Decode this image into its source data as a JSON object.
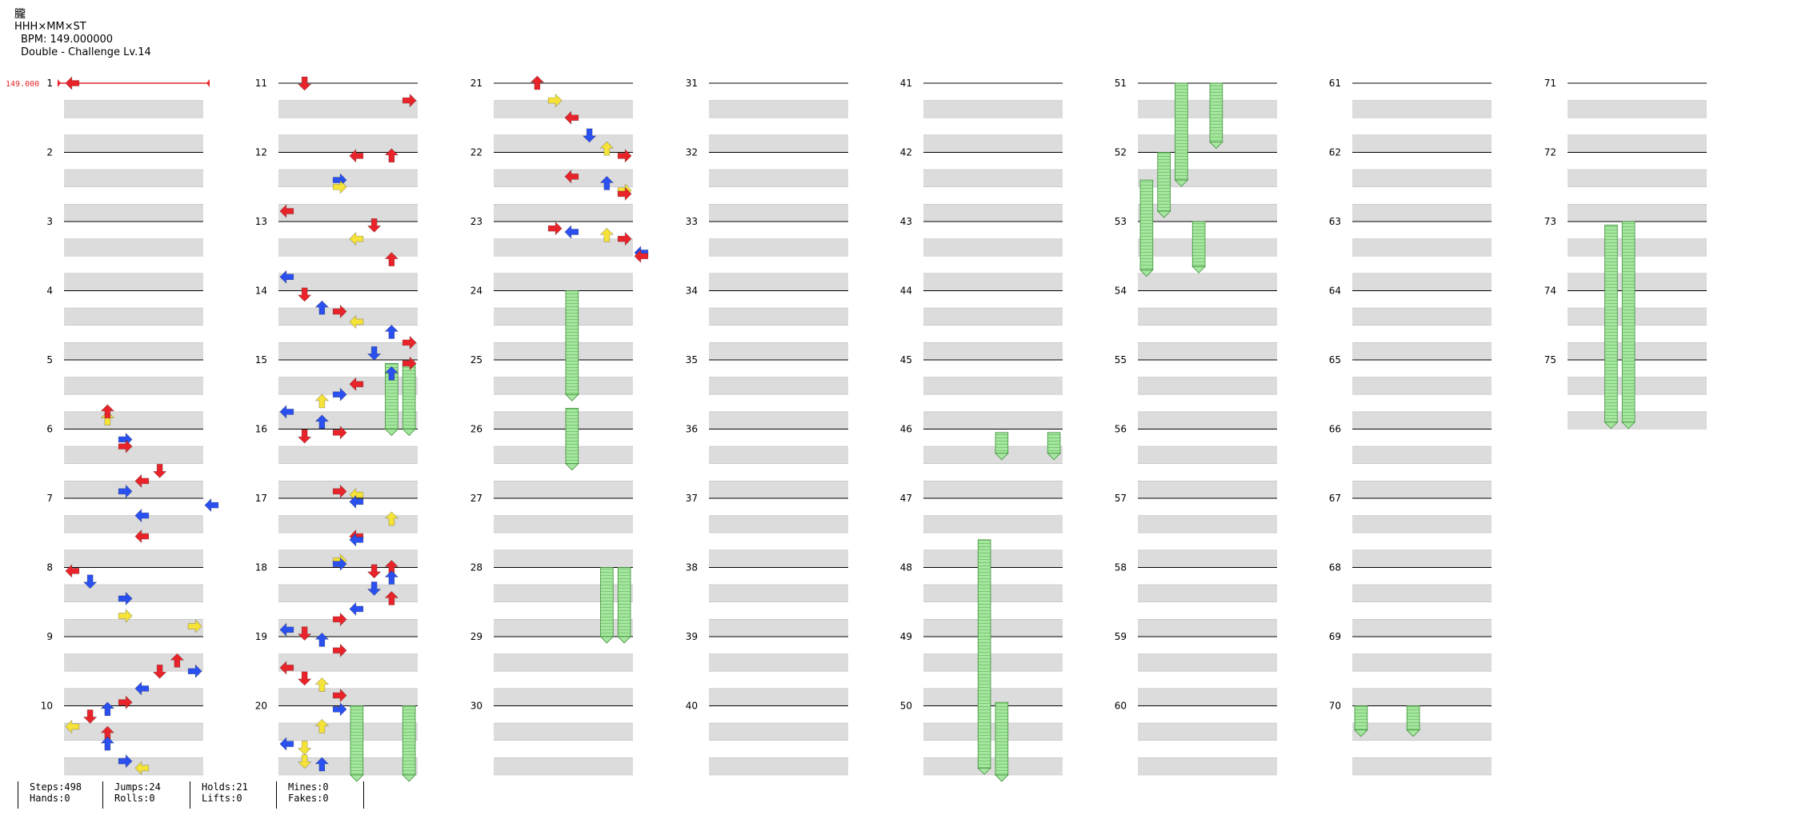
{
  "header": {
    "title": "朧",
    "artist": "HHH×MM×ST",
    "bpm_label": "BPM: 149.000000",
    "difficulty": "Double - Challenge Lv.14"
  },
  "bpm_marker": {
    "text": "149.000",
    "color": "#e8242a"
  },
  "colors": {
    "left": "#e8242a",
    "down": "#2a50f0",
    "up": "#2a50f0",
    "right": "#e8242a",
    "quarter_blue": "#2a50f0",
    "eighth_red": "#e8242a",
    "sixteenth_yellow": "#f5e33a",
    "hold": "#9fe29a",
    "band": "#dcdcdc"
  },
  "measure_numbers": [
    "1",
    "2",
    "3",
    "4",
    "5",
    "6",
    "7",
    "8",
    "9",
    "10",
    "11",
    "12",
    "13",
    "14",
    "15",
    "16",
    "17",
    "18",
    "19",
    "20",
    "21",
    "22",
    "23",
    "24",
    "25",
    "26",
    "27",
    "28",
    "29",
    "30",
    "31",
    "32",
    "33",
    "34",
    "35",
    "36",
    "37",
    "38",
    "39",
    "40",
    "41",
    "42",
    "43",
    "44",
    "45",
    "46",
    "47",
    "48",
    "49",
    "50",
    "51",
    "52",
    "53",
    "54",
    "55",
    "56",
    "57",
    "58",
    "59",
    "60",
    "61",
    "62",
    "63",
    "64",
    "65",
    "66",
    "67",
    "68",
    "69",
    "70",
    "71",
    "72",
    "73",
    "74",
    "75"
  ],
  "notes": [
    [
      "9.5",
      "5",
      0
    ],
    [
      "6.9",
      "3",
      1
    ],
    [
      "6.75",
      "4",
      0
    ],
    [
      "6.6",
      "5",
      0
    ],
    [
      "7.1",
      "8",
      1
    ],
    [
      "6.15",
      "3",
      1
    ],
    [
      "6.25",
      "3",
      0
    ],
    [
      "5.85",
      "2",
      2
    ],
    [
      "5.75",
      "2",
      0
    ],
    [
      "7.25",
      "4",
      1
    ],
    [
      "7.55",
      "4",
      0
    ],
    [
      "8.05",
      "0",
      0
    ],
    [
      "8.2",
      "1",
      1
    ],
    [
      "8.45",
      "3",
      1
    ],
    [
      "8.7",
      "3",
      2
    ],
    [
      "8.85",
      "7",
      2
    ],
    [
      "9.35",
      "6",
      0
    ],
    [
      "9.5",
      "7",
      1
    ],
    [
      "9.75",
      "4",
      1
    ],
    [
      "9.95",
      "3",
      0
    ],
    [
      "10.05",
      "2",
      1
    ],
    [
      "10.15",
      "1",
      0
    ],
    [
      "10.3",
      "0",
      2
    ],
    [
      "10.4",
      "2",
      0
    ],
    [
      "10.55",
      "2",
      1
    ],
    [
      "10.8",
      "3",
      1
    ],
    [
      "10.9",
      "4",
      2
    ],
    [
      "11.0",
      "1",
      0
    ],
    [
      "11.25",
      "7",
      0
    ],
    [
      "12.05",
      "4",
      0
    ],
    [
      "12.05",
      "6",
      0
    ],
    [
      "12.4",
      "3",
      1
    ],
    [
      "12.5",
      "3",
      2
    ],
    [
      "12.85",
      "0",
      0
    ],
    [
      "13.55",
      "6",
      0
    ],
    [
      "13.25",
      "4",
      2
    ],
    [
      "13.05",
      "5",
      0
    ],
    [
      "13.8",
      "0",
      1
    ],
    [
      "14.05",
      "1",
      0
    ],
    [
      "14.25",
      "2",
      1
    ],
    [
      "14.3",
      "3",
      0
    ],
    [
      "14.45",
      "4",
      2
    ],
    [
      "14.6",
      "6",
      1
    ],
    [
      "14.75",
      "7",
      0
    ],
    [
      "14.9",
      "5",
      1
    ],
    [
      "15.05",
      "7",
      0
    ],
    [
      "15.2",
      "6",
      1
    ],
    [
      "15.35",
      "4",
      0
    ],
    [
      "15.5",
      "3",
      1
    ],
    [
      "15.6",
      "2",
      2
    ],
    [
      "15.75",
      "0",
      1
    ],
    [
      "15.9",
      "2",
      1
    ],
    [
      "16.05",
      "3",
      0
    ],
    [
      "16.1",
      "1",
      0
    ],
    [
      "16.9",
      "3",
      0
    ],
    [
      "16.95",
      "4",
      2
    ],
    [
      "17.05",
      "4",
      1
    ],
    [
      "17.3",
      "6",
      2
    ],
    [
      "17.55",
      "4",
      0
    ],
    [
      "17.6",
      "4",
      1
    ],
    [
      "17.9",
      "3",
      2
    ],
    [
      "17.95",
      "3",
      1
    ],
    [
      "18.0",
      "6",
      0
    ],
    [
      "18.05",
      "5",
      0
    ],
    [
      "18.15",
      "6",
      1
    ],
    [
      "18.3",
      "5",
      1
    ],
    [
      "18.45",
      "6",
      0
    ],
    [
      "18.6",
      "4",
      1
    ],
    [
      "18.75",
      "3",
      0
    ],
    [
      "18.9",
      "0",
      1
    ],
    [
      "18.95",
      "1",
      0
    ],
    [
      "19.05",
      "2",
      1
    ],
    [
      "19.2",
      "3",
      0
    ],
    [
      "19.45",
      "0",
      0
    ],
    [
      "19.6",
      "1",
      0
    ],
    [
      "19.7",
      "2",
      2
    ],
    [
      "19.85",
      "3",
      0
    ],
    [
      "20.05",
      "3",
      1
    ],
    [
      "20.3",
      "2",
      2
    ],
    [
      "20.55",
      "0",
      1
    ],
    [
      "20.6",
      "1",
      2
    ],
    [
      "20.8",
      "1",
      2
    ],
    [
      "20.85",
      "2",
      1
    ],
    [
      "21.0",
      "2",
      0
    ],
    [
      "21.25",
      "3",
      2
    ],
    [
      "21.5",
      "4",
      0
    ],
    [
      "21.75",
      "5",
      1
    ],
    [
      "21.95",
      "6",
      2
    ],
    [
      "22.05",
      "7",
      0
    ],
    [
      "22.35",
      "4",
      0
    ],
    [
      "22.45",
      "6",
      1
    ],
    [
      "22.55",
      "7",
      2
    ],
    [
      "22.6",
      "7",
      0
    ],
    [
      "23.1",
      "3",
      0
    ],
    [
      "23.15",
      "4",
      1
    ],
    [
      "23.2",
      "6",
      2
    ],
    [
      "23.25",
      "7",
      0
    ],
    [
      "23.45",
      "8",
      1
    ],
    [
      "23.5",
      "8",
      0
    ],
    [
      "1",
      "0",
      0
    ]
  ],
  "stats": {
    "steps": "Steps:498",
    "hands": "Hands:0",
    "jumps": "Jumps:24",
    "rolls": "Rolls:0",
    "holds": "Holds:21",
    "lifts": "Lifts:0",
    "mines": "Mines:0",
    "fakes": "Fakes:0"
  }
}
